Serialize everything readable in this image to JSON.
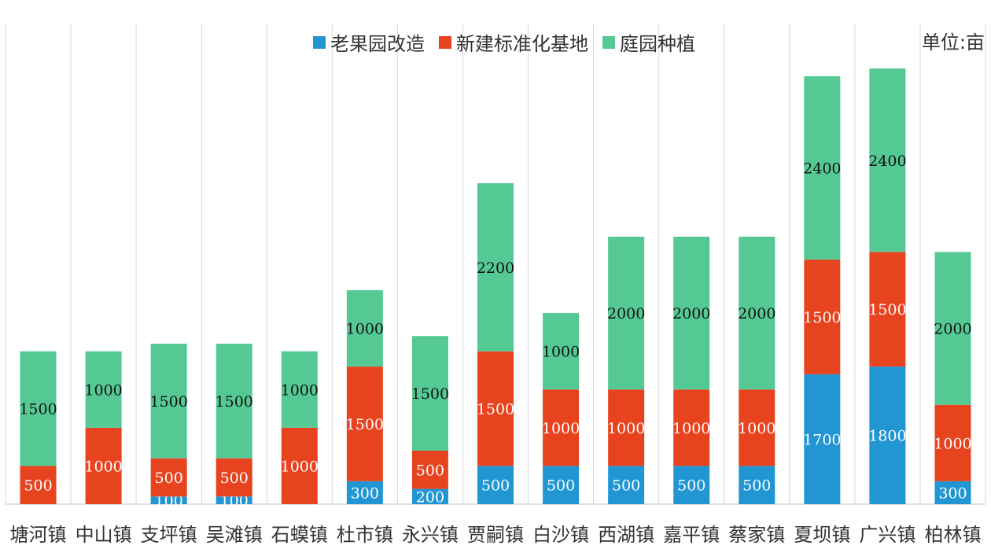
{
  "chart_data": {
    "type": "bar",
    "stacked": true,
    "unit_label": "单位:亩",
    "categories": [
      "塘河镇",
      "中山镇",
      "支坪镇",
      "吴滩镇",
      "石蟆镇",
      "杜市镇",
      "永兴镇",
      "贾嗣镇",
      "白沙镇",
      "西湖镇",
      "嘉平镇",
      "蔡家镇",
      "夏坝镇",
      "广兴镇",
      "柏林镇"
    ],
    "series": [
      {
        "name": "老果园改造",
        "color": "#2196d3",
        "values": [
          0,
          0,
          100,
          100,
          0,
          300,
          200,
          500,
          500,
          500,
          500,
          500,
          1700,
          1800,
          300
        ]
      },
      {
        "name": "新建标准化基地",
        "color": "#e8431f",
        "values": [
          500,
          1000,
          500,
          500,
          1000,
          1500,
          500,
          1500,
          1000,
          1000,
          1000,
          1000,
          1500,
          1500,
          1000
        ]
      },
      {
        "name": "庭园种植",
        "color": "#55c994",
        "values": [
          1500,
          1000,
          1500,
          1500,
          1000,
          1000,
          1500,
          2200,
          1000,
          2000,
          2000,
          2000,
          2400,
          2400,
          2000
        ]
      }
    ],
    "ylim": [
      0,
      6000
    ],
    "legend_position": "top-center",
    "grid": "vertical"
  }
}
